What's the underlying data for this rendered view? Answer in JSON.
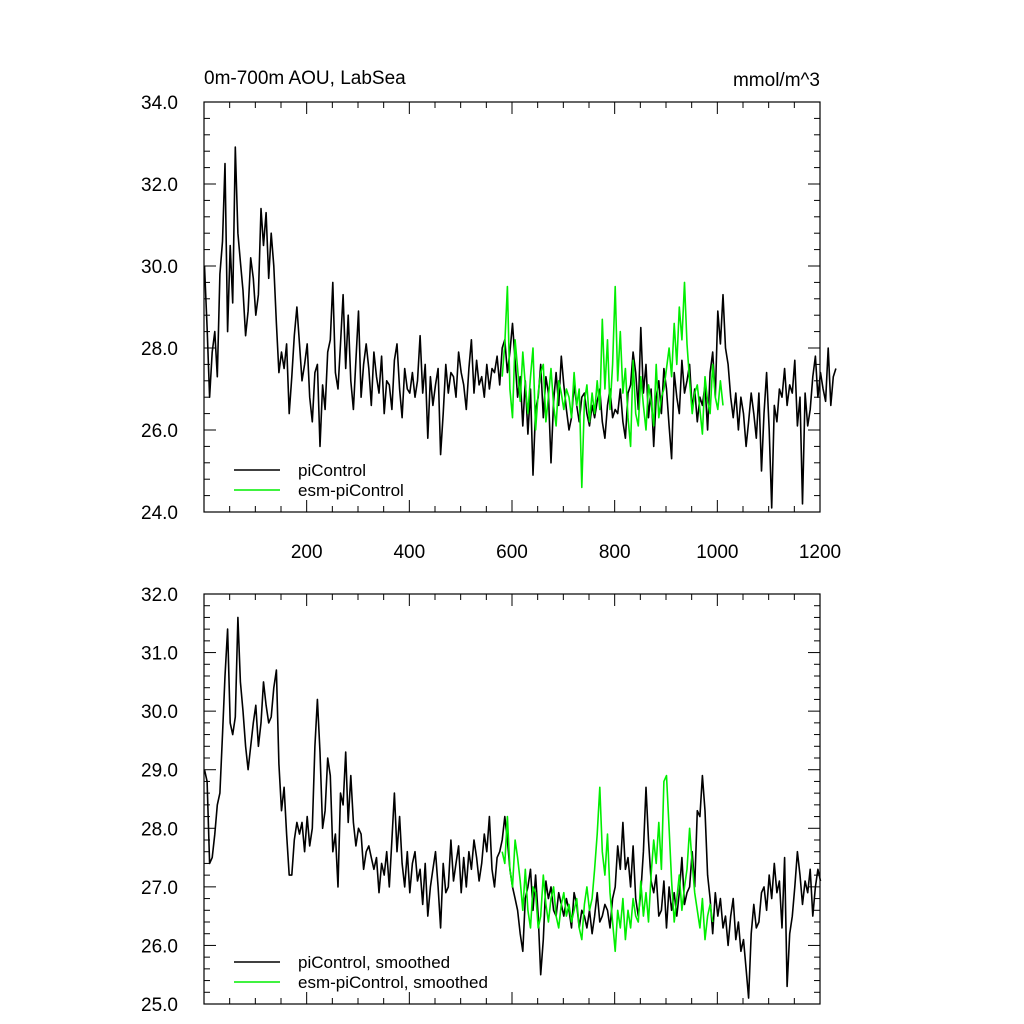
{
  "chart_data": [
    {
      "type": "line",
      "title": "0m-700m AOU, LabSea",
      "units": "mmol/m^3",
      "xlim": [
        0,
        1200
      ],
      "ylim": [
        24,
        34
      ],
      "xticks": [
        200,
        400,
        600,
        800,
        1000,
        1200
      ],
      "xtick_labels": [
        "200",
        "400",
        "600",
        "800",
        "1000",
        "1200"
      ],
      "yticks": [
        24,
        26,
        28,
        30,
        32,
        34
      ],
      "ytick_labels": [
        "24.0",
        "26.0",
        "28.0",
        "30.0",
        "32.0",
        "34.0"
      ],
      "legend_position": "bottom-left",
      "series": [
        {
          "name": "piControl",
          "color": "#000000",
          "x_start": 1,
          "x_step": 5,
          "values": [
            30.0,
            28.5,
            26.8,
            27.9,
            28.4,
            27.3,
            29.8,
            30.6,
            32.5,
            28.4,
            30.5,
            29.1,
            32.9,
            30.8,
            30.1,
            29.4,
            28.3,
            28.9,
            30.2,
            29.7,
            28.8,
            29.3,
            31.4,
            30.5,
            31.3,
            29.7,
            30.8,
            30.0,
            28.6,
            27.4,
            27.9,
            27.5,
            28.1,
            26.4,
            27.3,
            28.3,
            29.0,
            28.1,
            27.2,
            27.6,
            28.1,
            26.8,
            26.2,
            27.4,
            27.6,
            25.6,
            27.1,
            26.5,
            27.9,
            28.2,
            29.6,
            27.4,
            27.0,
            28.1,
            29.3,
            27.5,
            28.8,
            27.2,
            26.5,
            27.7,
            28.9,
            26.8,
            27.6,
            28.1,
            27.5,
            26.6,
            27.9,
            27.3,
            26.9,
            27.8,
            26.4,
            27.2,
            27.1,
            26.5,
            27.7,
            28.1,
            27.0,
            26.3,
            27.5,
            27.0,
            26.9,
            27.4,
            26.8,
            27.2,
            28.3,
            26.9,
            27.6,
            25.8,
            27.3,
            26.6,
            27.1,
            27.5,
            25.4,
            26.4,
            27.6,
            26.9,
            27.4,
            27.3,
            26.8,
            27.9,
            27.4,
            27.1,
            26.5,
            27.5,
            28.2,
            26.9,
            27.7,
            27.1,
            27.3,
            26.8,
            27.6,
            27.0,
            27.5,
            27.4,
            27.8,
            27.1,
            28.0,
            28.2,
            27.4,
            27.9,
            28.6,
            27.7,
            26.8,
            27.3,
            26.1,
            27.2,
            25.9,
            27.0,
            24.9,
            26.5,
            26.8,
            27.6,
            26.3,
            27.3,
            26.9,
            25.2,
            26.7,
            27.4,
            26.6,
            27.8,
            27.1,
            26.5,
            26.0,
            26.3,
            27.1,
            26.6,
            26.2,
            26.8,
            26.9,
            26.4,
            26.1,
            26.6,
            26.3,
            26.7,
            27.0,
            26.2,
            25.8,
            26.6,
            27.0,
            26.3,
            26.5,
            26.4,
            27.0,
            26.2,
            25.8,
            26.9,
            27.1,
            27.9,
            27.4,
            26.5,
            28.5,
            26.9,
            27.6,
            26.3,
            27.0,
            25.6,
            26.8,
            27.2,
            26.4,
            27.5,
            27.0,
            26.1,
            25.3,
            27.4,
            26.8,
            26.4,
            27.7,
            26.9,
            27.2,
            27.6,
            26.5,
            27.0,
            26.2,
            26.8,
            26.6,
            27.1,
            26.0,
            27.4,
            27.9,
            26.8,
            28.9,
            28.1,
            29.3,
            28.0,
            27.6,
            26.8,
            26.3,
            26.9,
            26.0,
            26.8,
            26.4,
            25.6,
            26.2,
            26.9,
            26.4,
            25.8,
            26.9,
            25.0,
            26.4,
            27.4,
            26.0,
            24.1,
            26.6,
            26.2,
            27.0,
            26.8,
            27.5,
            26.6,
            27.1,
            26.9,
            27.7,
            26.1,
            26.8,
            24.2,
            26.9,
            26.1,
            26.5,
            27.3,
            27.8,
            26.8,
            27.4,
            27.0,
            26.7,
            28.0,
            26.6,
            27.3,
            27.5
          ]
        },
        {
          "name": "esm-piControl",
          "color": "#00ee00",
          "x_start": 581,
          "x_step": 5,
          "values": [
            27.3,
            28.1,
            29.5,
            27.0,
            26.3,
            28.2,
            27.5,
            26.7,
            27.9,
            27.1,
            26.4,
            27.3,
            28.0,
            26.0,
            26.9,
            27.4,
            27.6,
            26.2,
            26.8,
            27.5,
            26.6,
            26.1,
            27.2,
            26.9,
            26.5,
            27.0,
            26.8,
            26.3,
            27.4,
            26.6,
            27.0,
            24.6,
            26.7,
            27.1,
            26.2,
            26.9,
            26.4,
            27.2,
            26.5,
            28.7,
            27.0,
            28.2,
            26.5,
            27.6,
            29.5,
            27.2,
            28.4,
            26.9,
            27.5,
            26.3,
            25.6,
            27.7,
            26.4,
            26.1,
            27.3,
            26.6,
            26.0,
            27.1,
            26.7,
            26.1,
            27.6,
            26.3,
            26.8,
            27.0,
            27.5,
            28.0,
            27.3,
            28.6,
            27.6,
            29.0,
            28.2,
            29.6,
            28.1,
            27.2,
            26.4,
            26.9,
            27.1,
            26.5,
            25.9,
            27.3,
            26.7,
            26.4,
            27.6,
            26.8,
            26.5,
            27.2,
            26.6
          ]
        }
      ]
    },
    {
      "type": "line",
      "xlim": [
        0,
        1200
      ],
      "ylim": [
        25,
        32
      ],
      "yticks": [
        25,
        26,
        27,
        28,
        29,
        30,
        31,
        32
      ],
      "ytick_labels": [
        "25.0",
        "26.0",
        "27.0",
        "28.0",
        "29.0",
        "30.0",
        "31.0",
        "32.0"
      ],
      "legend_position": "bottom-left",
      "series": [
        {
          "name": "piControl, smoothed",
          "color": "#000000",
          "x_start": 1,
          "x_step": 5,
          "values": [
            29.0,
            28.8,
            27.4,
            27.5,
            27.9,
            28.4,
            28.6,
            29.6,
            30.6,
            31.4,
            29.8,
            29.6,
            29.9,
            31.6,
            30.5,
            30.0,
            29.4,
            29.0,
            29.4,
            29.8,
            30.1,
            29.4,
            29.8,
            30.5,
            30.1,
            29.8,
            29.9,
            30.4,
            30.7,
            29.1,
            28.3,
            28.7,
            27.9,
            27.2,
            27.2,
            27.8,
            28.1,
            27.9,
            28.1,
            27.6,
            28.2,
            27.7,
            28.0,
            29.4,
            30.2,
            29.3,
            28.0,
            28.3,
            29.2,
            28.9,
            27.6,
            27.9,
            27.0,
            28.6,
            28.4,
            29.3,
            28.1,
            28.9,
            28.1,
            27.7,
            28.0,
            27.9,
            27.3,
            27.6,
            27.7,
            27.5,
            27.3,
            27.5,
            26.9,
            27.4,
            27.2,
            27.6,
            27.0,
            27.8,
            28.6,
            27.6,
            28.2,
            27.4,
            27.0,
            27.6,
            26.9,
            27.4,
            27.6,
            27.1,
            27.3,
            26.7,
            27.4,
            26.5,
            27.0,
            27.3,
            27.6,
            27.0,
            26.3,
            27.4,
            26.9,
            27.0,
            27.8,
            27.1,
            27.4,
            27.7,
            26.9,
            27.5,
            27.0,
            27.6,
            27.3,
            27.8,
            27.5,
            27.1,
            27.4,
            27.9,
            27.6,
            28.2,
            27.3,
            27.0,
            27.5,
            27.6,
            27.8,
            28.2,
            27.8,
            27.3,
            27.0,
            26.8,
            26.6,
            26.2,
            25.9,
            26.8,
            27.0,
            27.3,
            26.6,
            27.2,
            26.5,
            25.5,
            26.1,
            27.1,
            26.8,
            27.0,
            26.6,
            26.5,
            26.9,
            26.7,
            26.5,
            26.8,
            26.6,
            26.3,
            26.9,
            26.7,
            26.3,
            26.6,
            26.5,
            26.3,
            26.6,
            26.2,
            26.5,
            26.9,
            26.4,
            26.5,
            26.7,
            26.6,
            26.3,
            26.8,
            27.0,
            27.7,
            27.3,
            28.1,
            27.3,
            27.5,
            27.0,
            27.7,
            26.8,
            26.5,
            26.9,
            27.6,
            28.7,
            27.8,
            27.1,
            26.9,
            27.2,
            26.5,
            26.6,
            27.1,
            26.3,
            27.0,
            26.6,
            26.9,
            26.5,
            26.9,
            27.5,
            26.7,
            26.9,
            27.0,
            27.6,
            27.0,
            28.3,
            28.2,
            28.9,
            28.3,
            27.2,
            26.8,
            26.2,
            26.9,
            26.5,
            26.8,
            26.3,
            26.5,
            26.0,
            26.5,
            26.8,
            26.1,
            26.4,
            25.9,
            26.1,
            25.6,
            25.1,
            26.2,
            26.7,
            26.3,
            26.4,
            26.9,
            27.0,
            26.6,
            27.2,
            26.8,
            27.4,
            26.9,
            27.1,
            26.3,
            27.5,
            25.3,
            26.2,
            26.5,
            27.0,
            27.6,
            27.2,
            26.7,
            27.1,
            26.9,
            27.3,
            26.5,
            27.0,
            27.3,
            27.1
          ]
        },
        {
          "name": "esm-piControl, smoothed",
          "color": "#00ee00",
          "x_start": 581,
          "x_step": 5,
          "values": [
            27.6,
            27.4,
            28.2,
            27.3,
            27.0,
            27.8,
            27.5,
            27.1,
            26.6,
            27.3,
            26.6,
            26.3,
            27.0,
            26.9,
            26.3,
            26.5,
            27.2,
            26.7,
            26.4,
            26.8,
            27.0,
            26.5,
            26.3,
            26.7,
            26.9,
            26.5,
            26.7,
            26.4,
            26.6,
            26.8,
            26.3,
            26.1,
            26.7,
            27.0,
            26.6,
            26.8,
            27.3,
            27.9,
            28.7,
            27.6,
            27.2,
            27.9,
            26.9,
            26.4,
            25.9,
            26.6,
            26.3,
            26.8,
            26.1,
            26.6,
            26.3,
            26.8,
            26.5,
            26.4,
            27.1,
            26.5,
            26.9,
            26.4,
            27.2,
            27.8,
            27.4,
            28.1,
            27.3,
            28.8,
            28.9,
            28.0,
            27.1,
            26.4,
            26.8,
            27.2,
            26.6,
            27.0,
            27.3,
            28.0,
            27.4,
            26.9,
            26.6,
            26.3,
            26.8,
            26.1,
            26.5,
            26.7,
            26.4
          ]
        }
      ]
    }
  ]
}
